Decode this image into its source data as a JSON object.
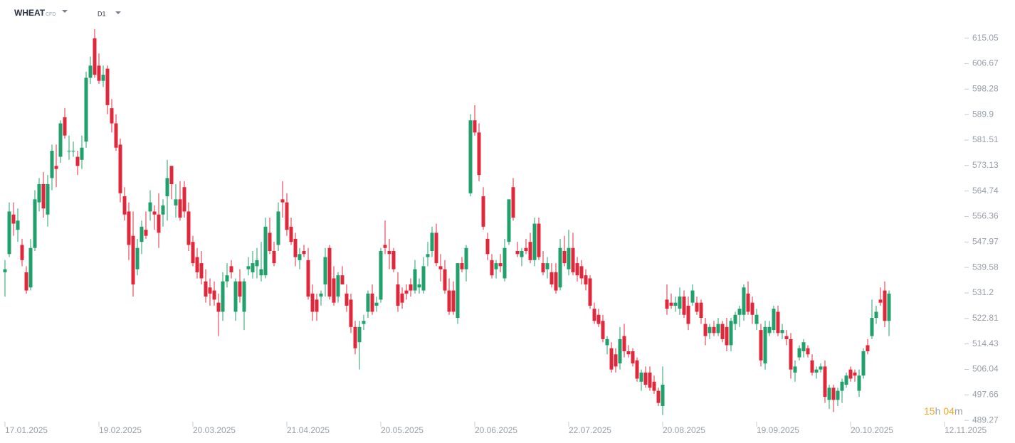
{
  "chart_data": {
    "type": "candlestick",
    "symbol": "WHEAT",
    "instrument": "CFD",
    "timeframe": "D1",
    "timer": [
      "15",
      "h",
      "04",
      "m"
    ],
    "up_color": "#22a06b",
    "down_color": "#e0283c",
    "ylim": [
      487.2,
      627.6
    ],
    "yticks": [
      615.05,
      606.67,
      598.28,
      589.9,
      581.51,
      573.13,
      564.74,
      556.36,
      547.97,
      539.58,
      531.2,
      522.81,
      514.43,
      506.04,
      497.66,
      489.27
    ],
    "xlim": [
      -1,
      224
    ],
    "xticks": [
      {
        "value": 0,
        "label": "17.01.2025"
      },
      {
        "value": 22,
        "label": "19.02.2025"
      },
      {
        "value": 44,
        "label": "20.03.2025"
      },
      {
        "value": 66,
        "label": "21.04.2025"
      },
      {
        "value": 88,
        "label": "20.05.2025"
      },
      {
        "value": 110,
        "label": "20.06.2025"
      },
      {
        "value": 132,
        "label": "22.07.2025"
      },
      {
        "value": 154,
        "label": "20.08.2025"
      },
      {
        "value": 176,
        "label": "19.09.2025"
      },
      {
        "value": 198,
        "label": "20.10.2025"
      },
      {
        "value": 220,
        "label": "12.11.2025"
      }
    ],
    "ohlc": [
      [
        538,
        542,
        530,
        539
      ],
      [
        544,
        561,
        543,
        558
      ],
      [
        557,
        561,
        550,
        554
      ],
      [
        552,
        559,
        548,
        555
      ],
      [
        547,
        549,
        540,
        542
      ],
      [
        538,
        540,
        531,
        532
      ],
      [
        533,
        549,
        532,
        546
      ],
      [
        546,
        565,
        545,
        562
      ],
      [
        561,
        569,
        558,
        567
      ],
      [
        567,
        571,
        556,
        559
      ],
      [
        557,
        570,
        553,
        567
      ],
      [
        569,
        580,
        565,
        578
      ],
      [
        573,
        580,
        566,
        572
      ],
      [
        576,
        588,
        574,
        587
      ],
      [
        589,
        592,
        582,
        583
      ],
      [
        578,
        583,
        575,
        578
      ],
      [
        578,
        581,
        576,
        578
      ],
      [
        576,
        578,
        570,
        573
      ],
      [
        575,
        583,
        572,
        579
      ],
      [
        581,
        604,
        579,
        602
      ],
      [
        602,
        609,
        600,
        606
      ],
      [
        615,
        618,
        602,
        603
      ],
      [
        606,
        610,
        600,
        601
      ],
      [
        601,
        606,
        599,
        603
      ],
      [
        605,
        606,
        590,
        593
      ],
      [
        592,
        595,
        584,
        587
      ],
      [
        587,
        590,
        578,
        579
      ],
      [
        580,
        582,
        561,
        564
      ],
      [
        563,
        566,
        555,
        557
      ],
      [
        558,
        561,
        542,
        547
      ],
      [
        550,
        558,
        530,
        534
      ],
      [
        539,
        549,
        537,
        546
      ],
      [
        548,
        555,
        544,
        553
      ],
      [
        552,
        558,
        549,
        550
      ],
      [
        558,
        565,
        555,
        561
      ],
      [
        558,
        560,
        552,
        557
      ],
      [
        557,
        564,
        546,
        551
      ],
      [
        557,
        562,
        553,
        560
      ],
      [
        563,
        575,
        555,
        569
      ],
      [
        573,
        573,
        562,
        567
      ],
      [
        560,
        567,
        556,
        562
      ],
      [
        562,
        568,
        555,
        556
      ],
      [
        566,
        568,
        556,
        558
      ],
      [
        558,
        561,
        545,
        547
      ],
      [
        548,
        550,
        540,
        541
      ],
      [
        543,
        546,
        536,
        538
      ],
      [
        541,
        545,
        534,
        536
      ],
      [
        535,
        539,
        528,
        530
      ],
      [
        533,
        536,
        527,
        531
      ],
      [
        532,
        535,
        527,
        529
      ],
      [
        528,
        531,
        517,
        525
      ],
      [
        525,
        538,
        522,
        535
      ],
      [
        535,
        541,
        533,
        537
      ],
      [
        540,
        542,
        536,
        538
      ],
      [
        525,
        536,
        522,
        535
      ],
      [
        535,
        539,
        528,
        530
      ],
      [
        525,
        536,
        519,
        535
      ],
      [
        539,
        543,
        537,
        540
      ],
      [
        538,
        545,
        536,
        541
      ],
      [
        540,
        546,
        536,
        542
      ],
      [
        537,
        548,
        535,
        539
      ],
      [
        537,
        556,
        536,
        553
      ],
      [
        551,
        556,
        544,
        545
      ],
      [
        545,
        548,
        540,
        541
      ],
      [
        547,
        561,
        545,
        558
      ],
      [
        562,
        568,
        556,
        561
      ],
      [
        561,
        564,
        550,
        552
      ],
      [
        553,
        556,
        547,
        548
      ],
      [
        549,
        551,
        540,
        543
      ],
      [
        542,
        546,
        539,
        544
      ],
      [
        545,
        547,
        543,
        544
      ],
      [
        542,
        546,
        529,
        530
      ],
      [
        531,
        534,
        522,
        525
      ],
      [
        529,
        531,
        522,
        525
      ],
      [
        530,
        532,
        527,
        531
      ],
      [
        534,
        546,
        530,
        543
      ],
      [
        546,
        547,
        529,
        530
      ],
      [
        536,
        540,
        527,
        528
      ],
      [
        530,
        538,
        528,
        537
      ],
      [
        537,
        540,
        534,
        534
      ],
      [
        531,
        534,
        525,
        527
      ],
      [
        529,
        531,
        518,
        520
      ],
      [
        520,
        522,
        511,
        513
      ],
      [
        515,
        522,
        506,
        520
      ],
      [
        521,
        524,
        519,
        522
      ],
      [
        525,
        532,
        523,
        531
      ],
      [
        531,
        534,
        524,
        525
      ],
      [
        527,
        530,
        525,
        528
      ],
      [
        529,
        546,
        528,
        545
      ],
      [
        547,
        555,
        544,
        546
      ],
      [
        545,
        549,
        539,
        544
      ],
      [
        545,
        546,
        538,
        539
      ],
      [
        534,
        538,
        525,
        527
      ],
      [
        531,
        533,
        526,
        528
      ],
      [
        532,
        534,
        529,
        531
      ],
      [
        534,
        536,
        530,
        532
      ],
      [
        532,
        542,
        531,
        539
      ],
      [
        533,
        536,
        531,
        534
      ],
      [
        532,
        543,
        531,
        540
      ],
      [
        543,
        548,
        540,
        544
      ],
      [
        545,
        553,
        543,
        551
      ],
      [
        551,
        554,
        540,
        541
      ],
      [
        540,
        544,
        535,
        539
      ],
      [
        539,
        542,
        531,
        532
      ],
      [
        532,
        536,
        524,
        525
      ],
      [
        532,
        535,
        524,
        525
      ],
      [
        523,
        541,
        521,
        541
      ],
      [
        541,
        543,
        538,
        539
      ],
      [
        539,
        547,
        535,
        546
      ],
      [
        564,
        590,
        563,
        588
      ],
      [
        588,
        593,
        583,
        584
      ],
      [
        584,
        587,
        568,
        570
      ],
      [
        563,
        566,
        552,
        553
      ],
      [
        549,
        551,
        542,
        544
      ],
      [
        542,
        544,
        536,
        537
      ],
      [
        539,
        542,
        536,
        541
      ],
      [
        541,
        544,
        538,
        540
      ],
      [
        536,
        549,
        535,
        546
      ],
      [
        548,
        562,
        547,
        562
      ],
      [
        566,
        569,
        555,
        556
      ],
      [
        545,
        548,
        543,
        544
      ],
      [
        543,
        546,
        540,
        545
      ],
      [
        546,
        549,
        544,
        545
      ],
      [
        548,
        551,
        541,
        542
      ],
      [
        542,
        556,
        540,
        554
      ],
      [
        554,
        556,
        542,
        543
      ],
      [
        541,
        545,
        537,
        538
      ],
      [
        539,
        543,
        536,
        541
      ],
      [
        538,
        541,
        533,
        534
      ],
      [
        538,
        541,
        531,
        532
      ],
      [
        533,
        549,
        532,
        546
      ],
      [
        545,
        550,
        540,
        541
      ],
      [
        539,
        552,
        537,
        546
      ],
      [
        546,
        551,
        537,
        538
      ],
      [
        541,
        543,
        535,
        537
      ],
      [
        540,
        542,
        534,
        536
      ],
      [
        537,
        539,
        532,
        534
      ],
      [
        536,
        537,
        526,
        527
      ],
      [
        526,
        528,
        521,
        522
      ],
      [
        524,
        526,
        520,
        521
      ],
      [
        522,
        524,
        515,
        516
      ],
      [
        514,
        517,
        511,
        516
      ],
      [
        513,
        515,
        505,
        506
      ],
      [
        511,
        513,
        505,
        507
      ],
      [
        508,
        520,
        506,
        516
      ],
      [
        517,
        521,
        510,
        512
      ],
      [
        512,
        514,
        510,
        511
      ],
      [
        512,
        513,
        507,
        508
      ],
      [
        509,
        510,
        502,
        503
      ],
      [
        502,
        506,
        499,
        505
      ],
      [
        505,
        507,
        500,
        501
      ],
      [
        505,
        507,
        499,
        500
      ],
      [
        502,
        504,
        498,
        499
      ],
      [
        499,
        500,
        494,
        495
      ],
      [
        494,
        507,
        491,
        501
      ],
      [
        529,
        534,
        524,
        526
      ],
      [
        528,
        531,
        526,
        527
      ],
      [
        527,
        530,
        525,
        528
      ],
      [
        526,
        533,
        524,
        530
      ],
      [
        530,
        532,
        523,
        524
      ],
      [
        527,
        530,
        519,
        521
      ],
      [
        528,
        534,
        527,
        532
      ],
      [
        528,
        530,
        524,
        525
      ],
      [
        528,
        529,
        521,
        523
      ],
      [
        521,
        523,
        514,
        517
      ],
      [
        518,
        521,
        516,
        520
      ],
      [
        520,
        522,
        517,
        518
      ],
      [
        518,
        523,
        517,
        521
      ],
      [
        521,
        522,
        515,
        516
      ],
      [
        520,
        523,
        512,
        514
      ],
      [
        514,
        523,
        512,
        522
      ],
      [
        521,
        525,
        519,
        524
      ],
      [
        524,
        527,
        520,
        526
      ],
      [
        524,
        534,
        522,
        533
      ],
      [
        531,
        535,
        524,
        525
      ],
      [
        528,
        530,
        521,
        524
      ],
      [
        521,
        526,
        519,
        524
      ],
      [
        519,
        521,
        507,
        509
      ],
      [
        508,
        522,
        506,
        520
      ],
      [
        518,
        522,
        517,
        520
      ],
      [
        519,
        527,
        518,
        526
      ],
      [
        525,
        527,
        517,
        518
      ],
      [
        518,
        521,
        516,
        519
      ],
      [
        517,
        519,
        514,
        516
      ],
      [
        516,
        518,
        503,
        506
      ],
      [
        505,
        509,
        502,
        507
      ],
      [
        510,
        514,
        509,
        513
      ],
      [
        512,
        516,
        510,
        515
      ],
      [
        513,
        514,
        510,
        511
      ],
      [
        509,
        511,
        504,
        505
      ],
      [
        505,
        507,
        503,
        506
      ],
      [
        506,
        508,
        505,
        507
      ],
      [
        507,
        509,
        495,
        497
      ],
      [
        496,
        501,
        493,
        500
      ],
      [
        500,
        501,
        492,
        496
      ],
      [
        496,
        500,
        494,
        499
      ],
      [
        499,
        503,
        495,
        502
      ],
      [
        501,
        505,
        500,
        504
      ],
      [
        506,
        507,
        502,
        503
      ],
      [
        505,
        506,
        502,
        504
      ],
      [
        499,
        506,
        497,
        504
      ],
      [
        504,
        513,
        503,
        512
      ],
      [
        514,
        516,
        511,
        512
      ],
      [
        517,
        529,
        516,
        523
      ],
      [
        523,
        527,
        521,
        525
      ],
      [
        529,
        533,
        527,
        528
      ],
      [
        532,
        535,
        520,
        522
      ],
      [
        522,
        532,
        517,
        531
      ]
    ]
  }
}
